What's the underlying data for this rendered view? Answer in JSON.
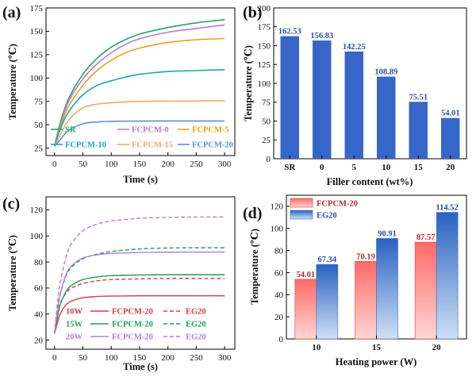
{
  "chart_data": [
    {
      "panel": "(a)",
      "type": "line",
      "xlabel": "Time (s)",
      "ylabel": "Temperature (℃)",
      "xlim": [
        -15,
        318
      ],
      "ylim": [
        17,
        175
      ],
      "xticks": [
        0,
        50,
        100,
        150,
        200,
        250,
        300
      ],
      "yticks": [
        25,
        50,
        75,
        100,
        125,
        150,
        175
      ],
      "legend_position": "bottom",
      "series": [
        {
          "name": "SR",
          "color": "#21a566",
          "x": [
            0,
            10,
            25,
            50,
            75,
            100,
            125,
            150,
            200,
            250,
            300
          ],
          "y": [
            27,
            52,
            78,
            104,
            121,
            133,
            141,
            147,
            154,
            159,
            162.5
          ]
        },
        {
          "name": "FCPCM-0",
          "color": "#b67ad9",
          "x": [
            0,
            10,
            25,
            50,
            75,
            100,
            125,
            150,
            200,
            250,
            300
          ],
          "y": [
            27,
            50,
            75,
            99,
            115,
            127,
            136,
            142,
            149,
            153,
            156.8
          ]
        },
        {
          "name": "FCPCM-5",
          "color": "#e6a21a",
          "x": [
            0,
            10,
            25,
            50,
            75,
            100,
            125,
            150,
            200,
            250,
            300
          ],
          "y": [
            27,
            47,
            70,
            92,
            108,
            119,
            127,
            132,
            138,
            141,
            142.3
          ]
        },
        {
          "name": "FCPCM-10",
          "color": "#1aa6b8",
          "x": [
            0,
            10,
            25,
            50,
            75,
            100,
            125,
            150,
            200,
            250,
            300
          ],
          "y": [
            27,
            45,
            64,
            82,
            92,
            97,
            101,
            104,
            107,
            108,
            108.9
          ]
        },
        {
          "name": "FCPCM-15",
          "color": "#f4a860",
          "x": [
            0,
            10,
            25,
            50,
            75,
            100,
            125,
            150,
            200,
            250,
            300
          ],
          "y": [
            27,
            39,
            55,
            68,
            72,
            73.5,
            74.5,
            75,
            75.3,
            75.4,
            75.5
          ]
        },
        {
          "name": "FCPCM-20",
          "color": "#5b8fd6",
          "x": [
            0,
            10,
            25,
            50,
            75,
            100,
            125,
            150,
            200,
            250,
            300
          ],
          "y": [
            27,
            34,
            44,
            51,
            53,
            53.6,
            53.8,
            53.9,
            54,
            54,
            54
          ]
        }
      ]
    },
    {
      "panel": "(b)",
      "type": "bar",
      "xlabel": "Filler content (wt%)",
      "ylabel": "Temperature (℃)",
      "ylim": [
        0,
        200
      ],
      "yticks": [
        0,
        25,
        50,
        75,
        100,
        125,
        150,
        175,
        200
      ],
      "categories": [
        "SR",
        "0",
        "5",
        "10",
        "15",
        "20"
      ],
      "values": [
        162.53,
        156.83,
        142.25,
        108.89,
        75.51,
        54.01
      ],
      "value_labels": [
        "162.53",
        "156.83",
        "142.25",
        "108.89",
        "75.51",
        "54.01"
      ],
      "bar_color": "#3666c8"
    },
    {
      "panel": "(c)",
      "type": "line",
      "xlabel": "Time (s)",
      "ylabel": "Temperature (℃)",
      "xlim": [
        -15,
        318
      ],
      "ylim": [
        13,
        130
      ],
      "xticks": [
        0,
        50,
        100,
        150,
        200,
        250,
        300
      ],
      "yticks": [
        20,
        40,
        60,
        80,
        100,
        120
      ],
      "legend_position": "bottom-center",
      "legend_rows": [
        {
          "power": "10W",
          "color": "#e03a3a",
          "solid_label": "FCPCM-20",
          "dashed_label": "EG20"
        },
        {
          "power": "15W",
          "color": "#1e9e55",
          "solid_label": "FCPCM-20",
          "dashed_label": "EG20"
        },
        {
          "power": "20W",
          "color": "#b77ad9",
          "solid_label": "FCPCM-20",
          "dashed_label": "EG20"
        }
      ],
      "series": [
        {
          "name": "10W FCPCM-20",
          "color": "#e03a3a",
          "dash": false,
          "x": [
            0,
            5,
            10,
            20,
            30,
            50,
            75,
            100,
            150,
            200,
            250,
            300
          ],
          "y": [
            25,
            33,
            40,
            47,
            50,
            52.5,
            53.5,
            53.8,
            54,
            54,
            54,
            54
          ]
        },
        {
          "name": "10W EG20",
          "color": "#e03a3a",
          "dash": true,
          "x": [
            0,
            5,
            10,
            20,
            30,
            50,
            75,
            100,
            150,
            200,
            250,
            300
          ],
          "y": [
            25,
            38,
            48,
            56,
            60,
            63.5,
            65.5,
            66.5,
            67,
            67.3,
            67.3,
            67.3
          ]
        },
        {
          "name": "15W FCPCM-20",
          "color": "#1e9e55",
          "dash": false,
          "x": [
            0,
            5,
            10,
            20,
            30,
            50,
            75,
            100,
            150,
            200,
            250,
            300
          ],
          "y": [
            25,
            37,
            47,
            57,
            62,
            66.5,
            68.5,
            69.5,
            70,
            70.2,
            70.2,
            70.2
          ]
        },
        {
          "name": "15W EG20",
          "color": "#1e9e55",
          "dash": true,
          "x": [
            0,
            5,
            10,
            20,
            30,
            50,
            75,
            100,
            150,
            200,
            250,
            300
          ],
          "y": [
            25,
            42,
            55,
            69,
            76,
            82.5,
            86,
            88,
            90,
            90.7,
            90.9,
            90.9
          ]
        },
        {
          "name": "20W FCPCM-20",
          "color": "#b77ad9",
          "dash": false,
          "x": [
            0,
            5,
            10,
            20,
            30,
            50,
            75,
            100,
            150,
            200,
            250,
            300
          ],
          "y": [
            25,
            42,
            55,
            70,
            77,
            83,
            85.5,
            86.5,
            87.3,
            87.5,
            87.6,
            87.6
          ]
        },
        {
          "name": "20W EG20",
          "color": "#b77ad9",
          "dash": true,
          "x": [
            0,
            5,
            10,
            20,
            30,
            50,
            75,
            100,
            150,
            200,
            250,
            300
          ],
          "y": [
            25,
            48,
            64,
            83,
            94,
            104,
            109,
            111.5,
            113.5,
            114.2,
            114.5,
            114.5
          ]
        }
      ]
    },
    {
      "panel": "(d)",
      "type": "bar",
      "xlabel": "Heating power (W)",
      "ylabel": "Temperature (℃)",
      "ylim": [
        0,
        130
      ],
      "yticks": [
        0,
        20,
        40,
        60,
        80,
        100,
        120
      ],
      "categories": [
        "10",
        "15",
        "20"
      ],
      "legend_position": "top-left",
      "series": [
        {
          "name": "FCPCM-20",
          "color": "#e8413c",
          "label_color": "#c0262a",
          "values": [
            54.01,
            70.19,
            87.57
          ],
          "value_labels": [
            "54.01",
            "70.19",
            "87.57"
          ]
        },
        {
          "name": "EG20",
          "color": "#2f6fc6",
          "label_color": "#1f4fa3",
          "values": [
            67.34,
            90.91,
            114.52
          ],
          "value_labels": [
            "67.34",
            "90.91",
            "114.52"
          ]
        }
      ]
    }
  ]
}
